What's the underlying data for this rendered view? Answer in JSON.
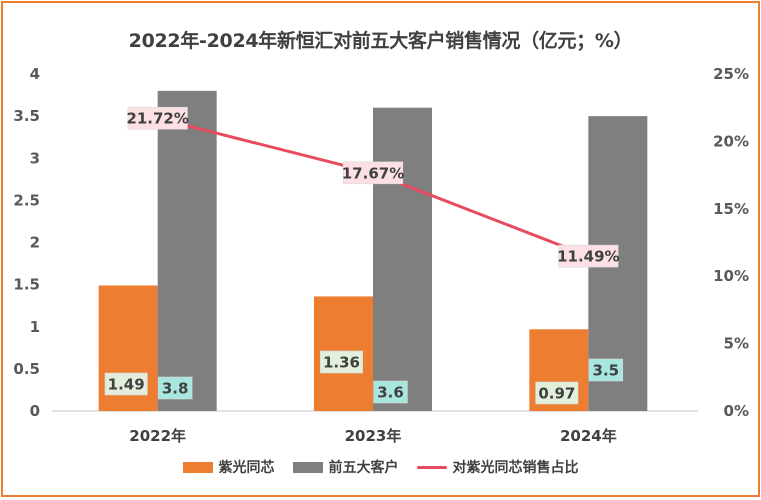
{
  "chart_data": {
    "type": "bar",
    "title": "2022年-2024年新恒汇对前五大客户销售情况（亿元；%）",
    "categories": [
      "2022年",
      "2023年",
      "2024年"
    ],
    "series": [
      {
        "name": "紫光同芯",
        "kind": "bar",
        "axis": "left",
        "color": "#ED7D31",
        "label_bg": "#E2EFDA",
        "values": [
          1.49,
          1.36,
          0.97
        ],
        "labels": [
          "1.49",
          "1.36",
          "0.97"
        ]
      },
      {
        "name": "前五大客户",
        "kind": "bar",
        "axis": "left",
        "color": "#7F7F7F",
        "label_bg": "#A8E6E0",
        "values": [
          3.8,
          3.6,
          3.5
        ],
        "labels": [
          "3.8",
          "3.6",
          "3.5"
        ]
      },
      {
        "name": "对紫光同芯销售占比",
        "kind": "line",
        "axis": "right",
        "color": "#E84A5F",
        "label_bg": "#FCE0E4",
        "values": [
          21.72,
          17.67,
          11.49
        ],
        "labels": [
          "21.72%",
          "17.67%",
          "11.49%"
        ]
      }
    ],
    "y_left": {
      "min": 0,
      "max": 4,
      "step": 0.5,
      "ticks": [
        "0",
        "0.5",
        "1",
        "1.5",
        "2",
        "2.5",
        "3",
        "3.5",
        "4"
      ]
    },
    "y_right": {
      "min": 0,
      "max": 25,
      "step": 5,
      "ticks": [
        "0%",
        "5%",
        "10%",
        "15%",
        "20%",
        "25%"
      ]
    },
    "xlabel": "",
    "ylabel": "",
    "grid": false,
    "legend_position": "bottom",
    "frame_color": "#ED7D31"
  }
}
